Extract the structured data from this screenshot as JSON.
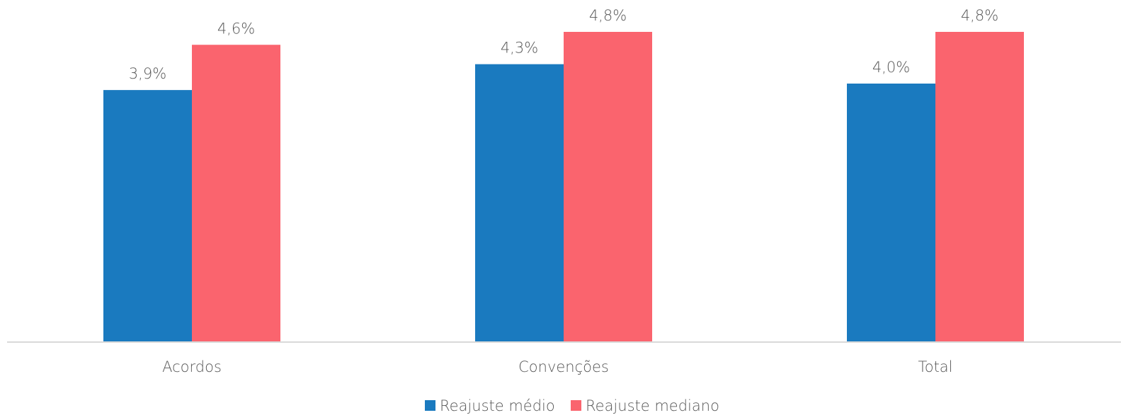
{
  "chart_data": {
    "type": "bar",
    "categories": [
      "Acordos",
      "Convenções",
      "Total"
    ],
    "series": [
      {
        "name": "Reajuste médio",
        "color": "#1a7abf",
        "values": [
          3.9,
          4.3,
          4.0
        ],
        "labels": [
          "3,9%",
          "4,3%",
          "4,0%"
        ]
      },
      {
        "name": "Reajuste mediano",
        "color": "#fa646e",
        "values": [
          4.6,
          4.8,
          4.8
        ],
        "labels": [
          "4,6%",
          "4,8%",
          "4,8%"
        ]
      }
    ],
    "ylim": [
      0,
      4.8
    ],
    "grid": false,
    "legend_position": "bottom"
  }
}
